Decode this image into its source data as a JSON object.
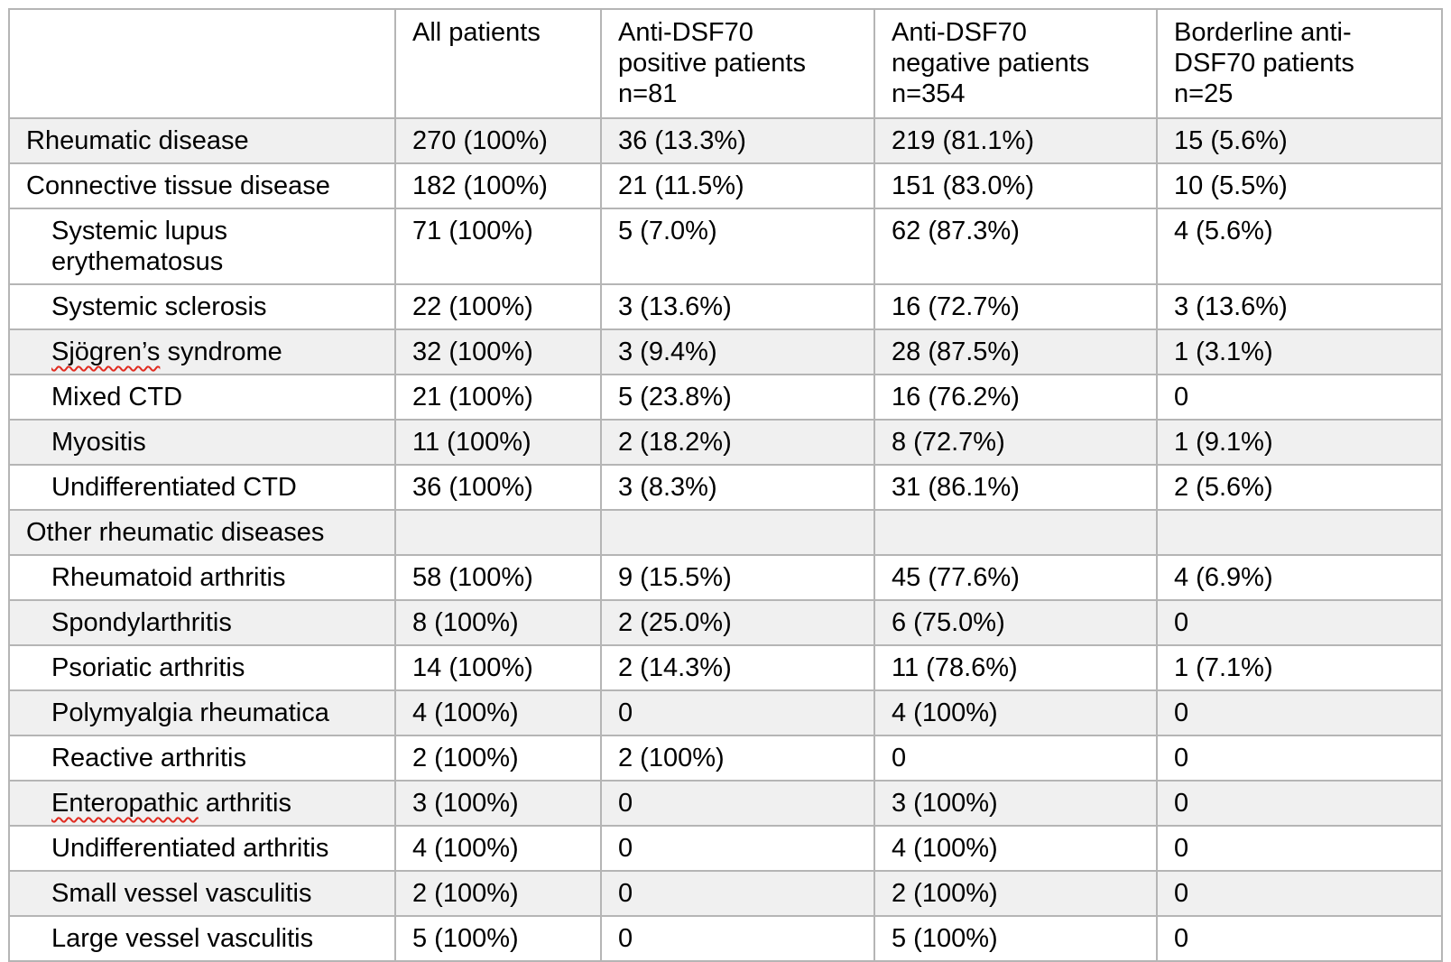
{
  "colors": {
    "border": "#b5b5b5",
    "row_stripe": "#f0f0f0",
    "text": "#000000",
    "spellcheck_squiggle": "#e02b20",
    "background": "#ffffff"
  },
  "table": {
    "columns": [
      {
        "lines": []
      },
      {
        "lines": [
          "All patients"
        ]
      },
      {
        "lines": [
          "Anti-DSF70",
          "positive patients",
          "n=81"
        ]
      },
      {
        "lines": [
          "Anti-DSF70",
          "negative patients",
          "n=354"
        ]
      },
      {
        "lines": [
          "Borderline anti-",
          "DSF70 patients",
          "n=25"
        ]
      }
    ],
    "rows": [
      {
        "label": "Rheumatic disease",
        "indent": 0,
        "shaded": true,
        "squiggle": "",
        "cells": [
          "270 (100%)",
          "36 (13.3%)",
          "219 (81.1%)",
          "15 (5.6%)"
        ]
      },
      {
        "label": "Connective tissue disease",
        "indent": 0,
        "shaded": false,
        "squiggle": "",
        "cells": [
          "182 (100%)",
          "21 (11.5%)",
          "151 (83.0%)",
          "10 (5.5%)"
        ]
      },
      {
        "label": "Systemic lupus erythematosus",
        "indent": 1,
        "shaded": false,
        "squiggle": "",
        "cells": [
          "71 (100%)",
          "5 (7.0%)",
          "62 (87.3%)",
          "4 (5.6%)"
        ]
      },
      {
        "label": "Systemic sclerosis",
        "indent": 1,
        "shaded": false,
        "squiggle": "",
        "cells": [
          "22 (100%)",
          "3 (13.6%)",
          "16 (72.7%)",
          "3 (13.6%)"
        ]
      },
      {
        "label": "Sjögren’s syndrome",
        "indent": 1,
        "shaded": true,
        "squiggle": "Sjögren’s",
        "cells": [
          "32 (100%)",
          "3 (9.4%)",
          "28 (87.5%)",
          "1 (3.1%)"
        ]
      },
      {
        "label": "Mixed CTD",
        "indent": 1,
        "shaded": false,
        "squiggle": "",
        "cells": [
          "21 (100%)",
          "5 (23.8%)",
          "16 (76.2%)",
          "0"
        ]
      },
      {
        "label": "Myositis",
        "indent": 1,
        "shaded": true,
        "squiggle": "",
        "cells": [
          "11 (100%)",
          "2 (18.2%)",
          "8 (72.7%)",
          "1 (9.1%)"
        ]
      },
      {
        "label": "Undifferentiated CTD",
        "indent": 1,
        "shaded": false,
        "squiggle": "",
        "cells": [
          "36 (100%)",
          "3 (8.3%)",
          "31 (86.1%)",
          "2 (5.6%)"
        ]
      },
      {
        "label": "Other rheumatic diseases",
        "indent": 0,
        "shaded": true,
        "squiggle": "",
        "cells": [
          "",
          "",
          "",
          ""
        ]
      },
      {
        "label": "Rheumatoid arthritis",
        "indent": 1,
        "shaded": false,
        "squiggle": "",
        "cells": [
          "58 (100%)",
          "9 (15.5%)",
          "45 (77.6%)",
          "4 (6.9%)"
        ]
      },
      {
        "label": "Spondylarthritis",
        "indent": 1,
        "shaded": true,
        "squiggle": "",
        "cells": [
          "8 (100%)",
          "2 (25.0%)",
          "6 (75.0%)",
          "0"
        ]
      },
      {
        "label": "Psoriatic arthritis",
        "indent": 1,
        "shaded": false,
        "squiggle": "",
        "cells": [
          "14 (100%)",
          "2 (14.3%)",
          "11 (78.6%)",
          "1 (7.1%)"
        ]
      },
      {
        "label": "Polymyalgia rheumatica",
        "indent": 1,
        "shaded": true,
        "squiggle": "",
        "cells": [
          "4 (100%)",
          "0",
          "4 (100%)",
          "0"
        ]
      },
      {
        "label": "Reactive arthritis",
        "indent": 1,
        "shaded": false,
        "squiggle": "",
        "cells": [
          "2 (100%)",
          "2 (100%)",
          "0",
          "0"
        ]
      },
      {
        "label": "Enteropathic arthritis",
        "indent": 1,
        "shaded": true,
        "squiggle": "Enteropathic",
        "cells": [
          "3 (100%)",
          "0",
          "3 (100%)",
          "0"
        ]
      },
      {
        "label": "Undifferentiated arthritis",
        "indent": 1,
        "shaded": false,
        "squiggle": "",
        "cells": [
          "4 (100%)",
          "0",
          "4 (100%)",
          "0"
        ]
      },
      {
        "label": "Small vessel vasculitis",
        "indent": 1,
        "shaded": true,
        "squiggle": "",
        "cells": [
          "2 (100%)",
          "0",
          "2 (100%)",
          "0"
        ]
      },
      {
        "label": "Large vessel vasculitis",
        "indent": 1,
        "shaded": false,
        "squiggle": "",
        "cells": [
          "5 (100%)",
          "0",
          "5 (100%)",
          "0"
        ]
      }
    ]
  }
}
